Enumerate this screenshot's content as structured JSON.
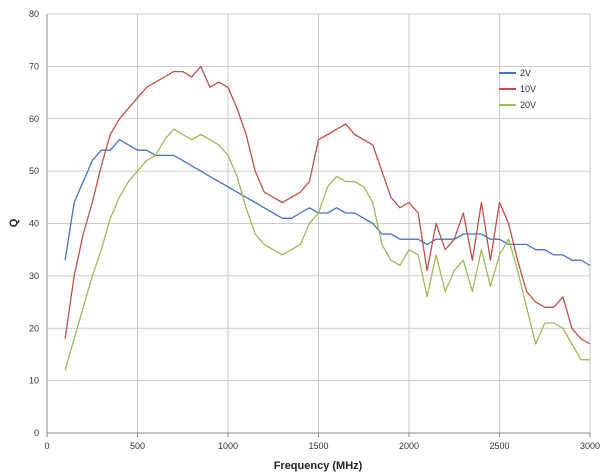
{
  "chart_data": {
    "type": "line",
    "title": "",
    "xlabel": "Frequency (MHz)",
    "ylabel": "Q",
    "xlim": [
      0,
      3000
    ],
    "ylim": [
      0,
      80
    ],
    "xticks": [
      0,
      500,
      1000,
      1500,
      2000,
      2500,
      3000
    ],
    "yticks": [
      0,
      10,
      20,
      30,
      40,
      50,
      60,
      70,
      80
    ],
    "grid": true,
    "legend_position": "top-right",
    "series": [
      {
        "name": "2V",
        "color": "#4472c4",
        "x": [
          100,
          150,
          200,
          250,
          300,
          350,
          400,
          450,
          500,
          550,
          600,
          650,
          700,
          750,
          800,
          850,
          900,
          950,
          1000,
          1050,
          1100,
          1150,
          1200,
          1250,
          1300,
          1350,
          1400,
          1450,
          1500,
          1550,
          1600,
          1650,
          1700,
          1750,
          1800,
          1850,
          1900,
          1950,
          2000,
          2050,
          2100,
          2150,
          2200,
          2250,
          2300,
          2350,
          2400,
          2450,
          2500,
          2550,
          2600,
          2650,
          2700,
          2750,
          2800,
          2850,
          2900,
          2950,
          3000
        ],
        "y": [
          33,
          44,
          48,
          52,
          54,
          54,
          56,
          55,
          54,
          54,
          53,
          53,
          53,
          52,
          51,
          50,
          49,
          48,
          47,
          46,
          45,
          44,
          43,
          42,
          41,
          41,
          42,
          43,
          42,
          42,
          43,
          42,
          42,
          41,
          40,
          38,
          38,
          37,
          37,
          37,
          36,
          37,
          37,
          37,
          38,
          38,
          38,
          37,
          37,
          36,
          36,
          36,
          35,
          35,
          34,
          34,
          33,
          33,
          32
        ]
      },
      {
        "name": "10V",
        "color": "#c0504d",
        "x": [
          100,
          150,
          200,
          250,
          300,
          350,
          400,
          450,
          500,
          550,
          600,
          650,
          700,
          750,
          800,
          850,
          900,
          950,
          1000,
          1050,
          1100,
          1150,
          1200,
          1250,
          1300,
          1350,
          1400,
          1450,
          1500,
          1550,
          1600,
          1650,
          1700,
          1750,
          1800,
          1850,
          1900,
          1950,
          2000,
          2050,
          2100,
          2150,
          2200,
          2250,
          2300,
          2350,
          2400,
          2450,
          2500,
          2550,
          2600,
          2650,
          2700,
          2750,
          2800,
          2850,
          2900,
          2950,
          3000
        ],
        "y": [
          18,
          30,
          38,
          44,
          51,
          57,
          60,
          62,
          64,
          66,
          67,
          68,
          69,
          69,
          68,
          70,
          66,
          67,
          66,
          62,
          57,
          50,
          46,
          45,
          44,
          45,
          46,
          48,
          56,
          57,
          58,
          59,
          57,
          56,
          55,
          50,
          45,
          43,
          44,
          42,
          31,
          40,
          35,
          37,
          42,
          33,
          44,
          33,
          44,
          40,
          33,
          27,
          25,
          24,
          24,
          26,
          20,
          18,
          17
        ]
      },
      {
        "name": "20V",
        "color": "#9bbb59",
        "x": [
          100,
          150,
          200,
          250,
          300,
          350,
          400,
          450,
          500,
          550,
          600,
          650,
          700,
          750,
          800,
          850,
          900,
          950,
          1000,
          1050,
          1100,
          1150,
          1200,
          1250,
          1300,
          1350,
          1400,
          1450,
          1500,
          1550,
          1600,
          1650,
          1700,
          1750,
          1800,
          1850,
          1900,
          1950,
          2000,
          2050,
          2100,
          2150,
          2200,
          2250,
          2300,
          2350,
          2400,
          2450,
          2500,
          2550,
          2600,
          2650,
          2700,
          2750,
          2800,
          2850,
          2900,
          2950,
          3000
        ],
        "y": [
          12,
          18,
          24,
          30,
          35,
          41,
          45,
          48,
          50,
          52,
          53,
          56,
          58,
          57,
          56,
          57,
          56,
          55,
          53,
          49,
          43,
          38,
          36,
          35,
          34,
          35,
          36,
          40,
          42,
          47,
          49,
          48,
          48,
          47,
          44,
          36,
          33,
          32,
          35,
          34,
          26,
          34,
          27,
          31,
          33,
          27,
          35,
          28,
          34,
          37,
          31,
          24,
          17,
          21,
          21,
          20,
          17,
          14,
          14
        ]
      }
    ]
  }
}
